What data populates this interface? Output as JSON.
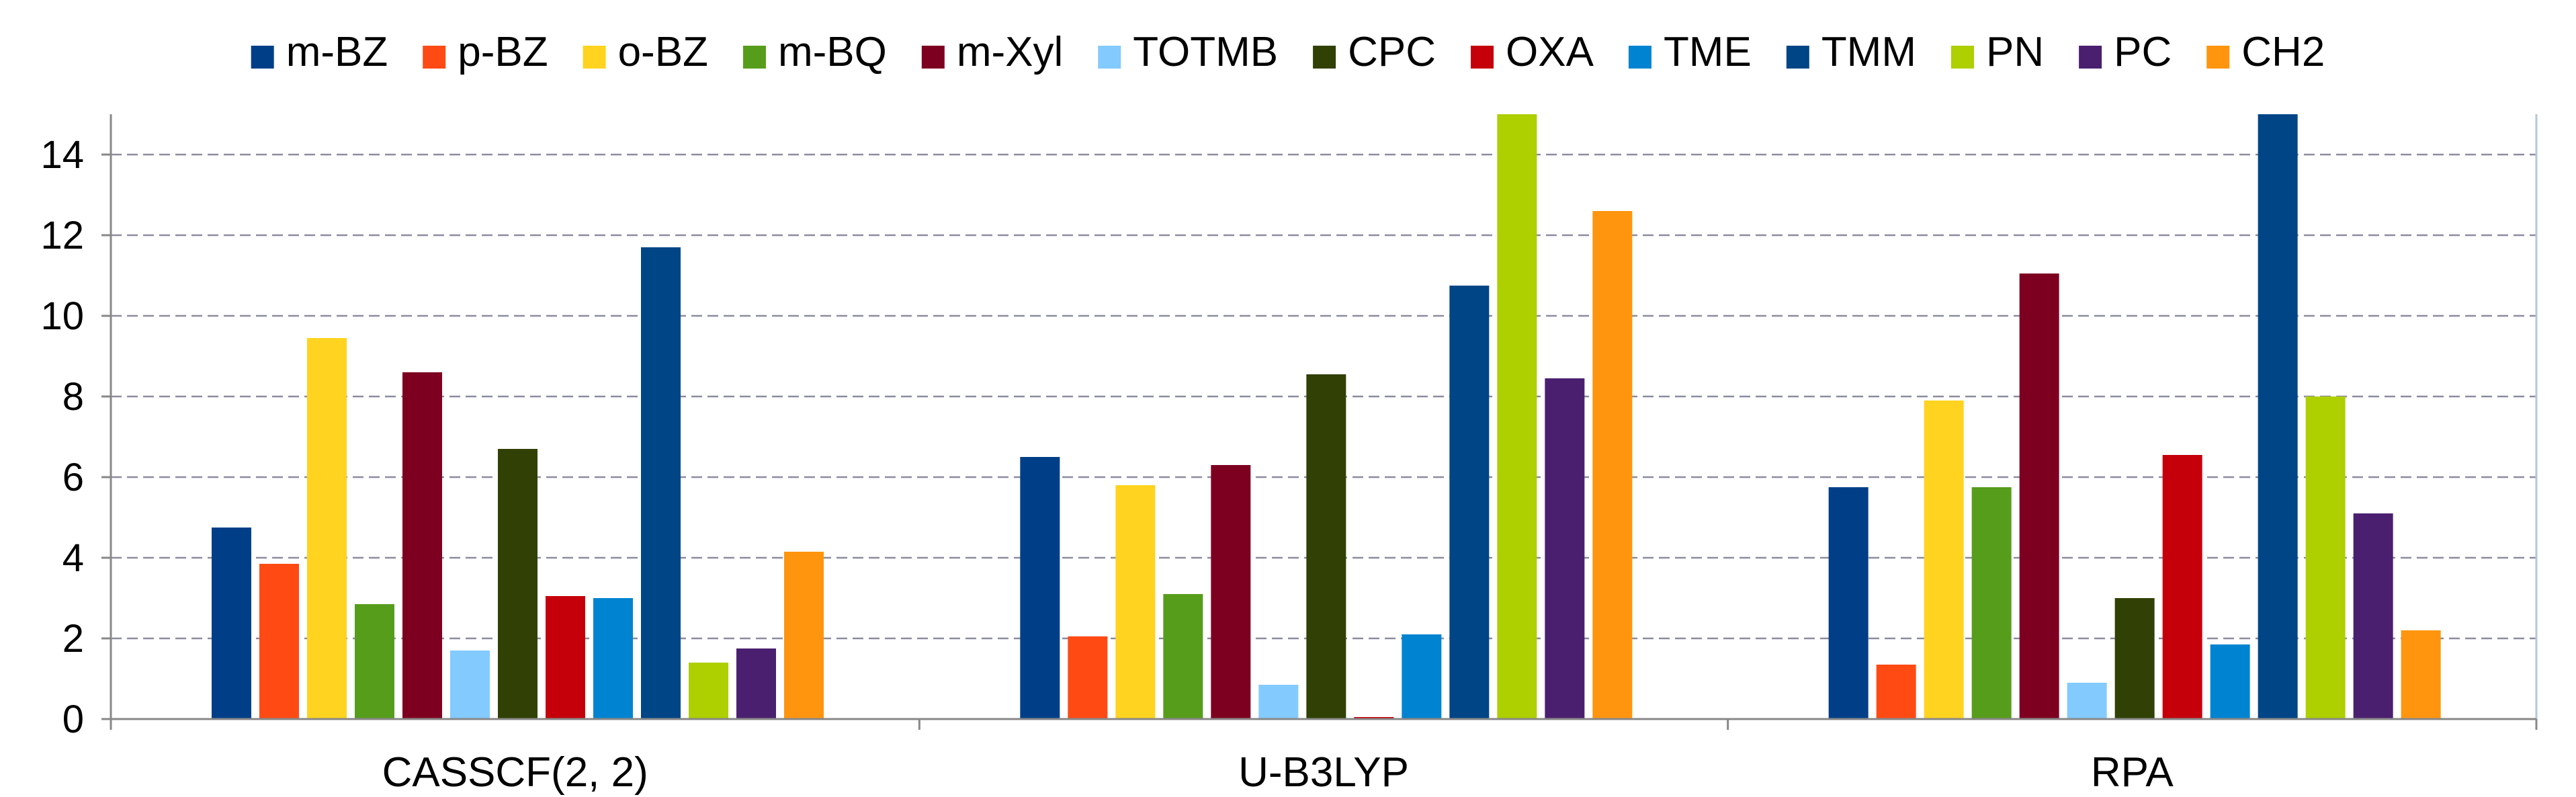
{
  "chart_data": {
    "type": "bar",
    "title": "",
    "xlabel": "",
    "ylabel": "",
    "categories": [
      "CASSCF(2, 2)",
      "U-B3LYP",
      "RPA"
    ],
    "ylim": [
      0,
      15
    ],
    "yticks": [
      "0",
      "2",
      "4",
      "6",
      "8",
      "10",
      "12",
      "14"
    ],
    "grid": true,
    "legend_position": "top",
    "series": [
      {
        "name": "m-BZ",
        "color": "#003f87",
        "values": [
          4.75,
          6.5,
          5.75
        ]
      },
      {
        "name": "p-BZ",
        "color": "#ff4a14",
        "values": [
          3.85,
          2.05,
          1.35
        ]
      },
      {
        "name": "o-BZ",
        "color": "#ffd320",
        "values": [
          9.45,
          5.8,
          7.9
        ]
      },
      {
        "name": "m-BQ",
        "color": "#579d1c",
        "values": [
          2.85,
          3.1,
          5.75
        ]
      },
      {
        "name": "m-Xyl",
        "color": "#7e0021",
        "values": [
          8.6,
          6.3,
          11.05
        ]
      },
      {
        "name": "TOTMB",
        "color": "#83caff",
        "values": [
          1.7,
          0.85,
          0.9
        ]
      },
      {
        "name": "CPC",
        "color": "#314004",
        "values": [
          6.7,
          8.55,
          3.0
        ]
      },
      {
        "name": "OXA",
        "color": "#c5000b",
        "values": [
          3.05,
          0.05,
          6.55
        ]
      },
      {
        "name": "TME",
        "color": "#0084d1",
        "values": [
          3.0,
          2.1,
          1.85
        ]
      },
      {
        "name": "TMM",
        "color": "#004586",
        "values": [
          11.7,
          10.75,
          15.0
        ]
      },
      {
        "name": "PN",
        "color": "#aecf00",
        "values": [
          1.4,
          15.0,
          8.0
        ]
      },
      {
        "name": "PC",
        "color": "#4b1f6f",
        "values": [
          1.75,
          8.45,
          5.1
        ]
      },
      {
        "name": "CH2",
        "color": "#ff950e",
        "values": [
          4.15,
          12.6,
          2.2
        ]
      }
    ]
  }
}
